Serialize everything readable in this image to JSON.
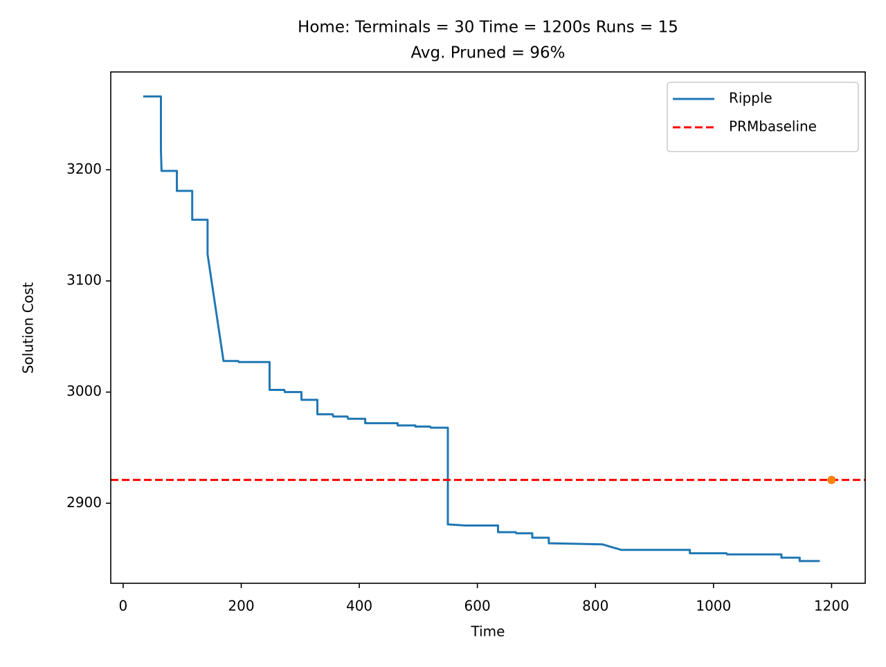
{
  "chart_data": {
    "type": "line",
    "title": [
      "Home:  Terminals = 30  Time = 1200s  Runs = 15",
      "Avg. Pruned = 96%"
    ],
    "xlabel": "Time",
    "ylabel": "Solution Cost",
    "xlim": [
      -21,
      1257
    ],
    "ylim": [
      2828,
      3288
    ],
    "xticks": [
      0,
      200,
      400,
      600,
      800,
      1000,
      1200
    ],
    "yticks": [
      2900,
      3000,
      3100,
      3200
    ],
    "legend": "upper right",
    "series": [
      {
        "name": "Ripple",
        "color": "#1f77b4",
        "x": [
          34,
          64,
          64,
          65,
          91,
          91,
          117,
          117,
          143,
          143,
          170,
          195,
          196,
          248,
          248,
          273,
          274,
          302,
          302,
          329,
          329,
          355,
          356,
          380,
          381,
          410,
          410,
          440,
          441,
          465,
          465,
          495,
          495,
          520,
          521,
          550,
          550,
          580,
          635,
          635,
          665,
          666,
          693,
          693,
          721,
          721,
          812,
          844,
          960,
          960,
          1022,
          1023,
          1115,
          1115,
          1146,
          1146,
          1180
        ],
        "values": [
          3266,
          3266,
          3218,
          3199,
          3199,
          3181,
          3181,
          3155,
          3155,
          3124,
          3028,
          3028,
          3027,
          3027,
          3002,
          3002,
          3000,
          3000,
          2993,
          2993,
          2980,
          2980,
          2978,
          2978,
          2976,
          2976,
          2972,
          2972,
          2972,
          2972,
          2970,
          2970,
          2969,
          2969,
          2968,
          2968,
          2881,
          2880,
          2880,
          2874,
          2874,
          2873,
          2873,
          2869,
          2869,
          2864,
          2863,
          2858,
          2858,
          2855,
          2855,
          2854,
          2854,
          2851,
          2851,
          2848,
          2848
        ]
      },
      {
        "name": "PRMbaseline",
        "color": "#ff0000",
        "type": "hline",
        "dashed": true,
        "values": [
          2921
        ]
      },
      {
        "color": "#ff7f0e",
        "type": "scatter",
        "x": [
          1200
        ],
        "values": [
          2921
        ]
      }
    ]
  }
}
